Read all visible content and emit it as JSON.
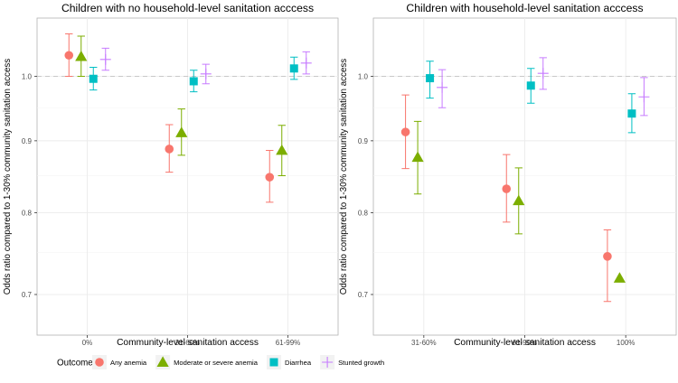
{
  "chart_data": [
    {
      "type": "scatter",
      "subtype": "point-range (odds ratio with 95% CI)",
      "title": "Children with no household-level sanitation acccess",
      "xlabel": "Community-level sanitation access",
      "ylabel": "Odds ratio compared to 1-30% community sanitation access",
      "categories": [
        "0%",
        "31-60%",
        "61-99%"
      ],
      "y_scale": "log",
      "ylim": [
        0.655,
        1.1
      ],
      "yticks": [
        0.7,
        0.8,
        0.9,
        1.0
      ],
      "ytick_labels": [
        "0.7",
        "0.8",
        "0.9",
        "1.0"
      ],
      "reference_line": 1.0,
      "series": [
        {
          "name": "Any anemia",
          "estimates": [
            1.035,
            0.888,
            0.848
          ],
          "lower": [
            1.0,
            0.855,
            0.814
          ],
          "upper": [
            1.072,
            0.924,
            0.886
          ]
        },
        {
          "name": "Moderate or severe anemia",
          "estimates": [
            1.033,
            0.912,
            0.886
          ],
          "lower": [
            1.0,
            0.879,
            0.85
          ],
          "upper": [
            1.068,
            0.948,
            0.923
          ]
        },
        {
          "name": "Diarrhea",
          "estimates": [
            0.996,
            0.992,
            1.013
          ],
          "lower": [
            0.978,
            0.975,
            0.995
          ],
          "upper": [
            1.015,
            1.01,
            1.032
          ]
        },
        {
          "name": "Stunted growth",
          "estimates": [
            1.028,
            1.004,
            1.022
          ],
          "lower": [
            1.01,
            0.988,
            1.004
          ],
          "upper": [
            1.047,
            1.02,
            1.041
          ]
        }
      ]
    },
    {
      "type": "scatter",
      "subtype": "point-range (odds ratio with 95% CI)",
      "title": "Children with household-level sanitation acccess",
      "xlabel": "Community-level sanitation access",
      "ylabel": "Odds ratio compared to 1-30% community sanitation access",
      "categories": [
        "31-60%",
        "61-99%",
        "100%"
      ],
      "y_scale": "log",
      "ylim": [
        0.655,
        1.1
      ],
      "yticks": [
        0.7,
        0.8,
        0.9,
        1.0
      ],
      "ytick_labels": [
        "0.7",
        "0.8",
        "0.9",
        "1.0"
      ],
      "reference_line": 1.0,
      "series": [
        {
          "name": "Any anemia",
          "estimates": [
            0.913,
            0.832,
            0.745
          ],
          "lower": [
            0.86,
            0.788,
            0.692
          ],
          "upper": [
            0.97,
            0.88,
            0.778
          ]
        },
        {
          "name": "Moderate or severe anemia",
          "estimates": [
            0.876,
            0.816,
            0.719
          ],
          "lower": [
            0.825,
            0.773,
            null
          ],
          "upper": [
            0.929,
            0.861,
            null
          ]
        },
        {
          "name": "Diarrhea",
          "estimates": [
            0.997,
            0.985,
            0.941
          ],
          "lower": [
            0.965,
            0.957,
            0.912
          ],
          "upper": [
            1.025,
            1.013,
            0.972
          ]
        },
        {
          "name": "Stunted growth",
          "estimates": [
            0.982,
            1.005,
            0.967
          ],
          "lower": [
            0.95,
            0.979,
            0.938
          ],
          "upper": [
            1.011,
            1.031,
            0.998
          ]
        }
      ]
    }
  ],
  "legend": {
    "title": "Outcome",
    "position": "bottom",
    "items": [
      {
        "label": "Any anemia",
        "shape": "circle",
        "color": "#F8766D"
      },
      {
        "label": "Moderate or severe anemia",
        "shape": "triangle",
        "color": "#7CAE00"
      },
      {
        "label": "Diarrhea",
        "shape": "square",
        "color": "#00BFC4"
      },
      {
        "label": "Stunted growth",
        "shape": "cross",
        "color": "#C77CFF"
      }
    ]
  },
  "colors": {
    "Any anemia": "#F8766D",
    "Moderate or severe anemia": "#7CAE00",
    "Diarrhea": "#00BFC4",
    "Stunted growth": "#C77CFF",
    "grid": "#EBEBEB",
    "reference": "#C8C8C8",
    "axis_text": "#4D4D4D"
  }
}
